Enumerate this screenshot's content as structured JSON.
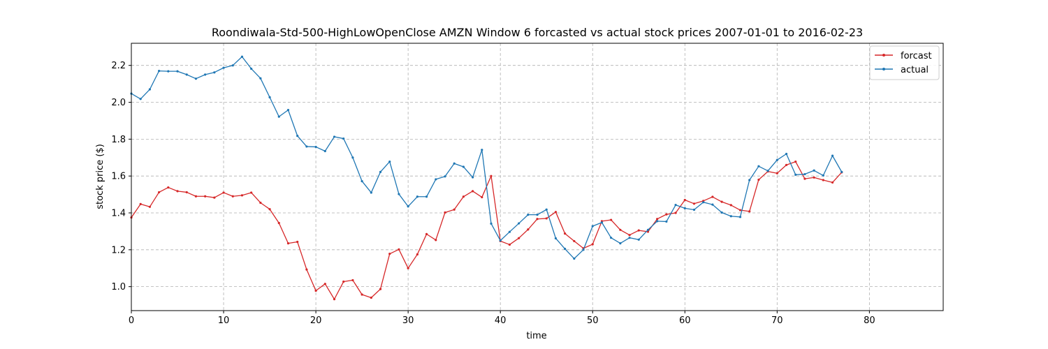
{
  "chart_data": {
    "type": "line",
    "title": "Roondiwala-Std-500-HighLowOpenClose AMZN Window 6 forcasted vs actual stock prices 2007-01-01 to 2016-02-23",
    "xlabel": "time",
    "ylabel": "stock price ($)",
    "xlim": [
      0,
      88
    ],
    "ylim": [
      0.87,
      2.32
    ],
    "xticks": [
      0,
      10,
      20,
      30,
      40,
      50,
      60,
      70,
      80
    ],
    "yticks": [
      1.0,
      1.2,
      1.4,
      1.6,
      1.8,
      2.0,
      2.2
    ],
    "ytick_labels": [
      "1.0",
      "1.2",
      "1.4",
      "1.6",
      "1.8",
      "2.0",
      "2.2"
    ],
    "grid": true,
    "legend_position": "top-right",
    "series": [
      {
        "name": "forcast",
        "color": "#d62728",
        "values": [
          1.375,
          1.448,
          1.433,
          1.512,
          1.538,
          1.518,
          1.512,
          1.49,
          1.49,
          1.483,
          1.51,
          1.49,
          1.495,
          1.51,
          1.455,
          1.42,
          1.345,
          1.235,
          1.243,
          1.093,
          0.978,
          1.015,
          0.932,
          1.027,
          1.035,
          0.957,
          0.94,
          0.987,
          1.178,
          1.202,
          1.1,
          1.175,
          1.285,
          1.253,
          1.402,
          1.418,
          1.488,
          1.518,
          1.485,
          1.6,
          1.247,
          1.228,
          1.263,
          1.31,
          1.367,
          1.37,
          1.405,
          1.288,
          1.247,
          1.208,
          1.23,
          1.355,
          1.362,
          1.308,
          1.28,
          1.305,
          1.298,
          1.367,
          1.392,
          1.4,
          1.47,
          1.45,
          1.465,
          1.487,
          1.46,
          1.442,
          1.415,
          1.408,
          1.58,
          1.625,
          1.615,
          1.66,
          1.678,
          1.585,
          1.592,
          1.578,
          1.565,
          1.62
        ]
      },
      {
        "name": "actual",
        "color": "#1f77b4",
        "values": [
          2.047,
          2.018,
          2.07,
          2.17,
          2.168,
          2.168,
          2.15,
          2.128,
          2.15,
          2.162,
          2.187,
          2.2,
          2.247,
          2.182,
          2.13,
          2.027,
          1.922,
          1.958,
          1.818,
          1.76,
          1.758,
          1.735,
          1.813,
          1.803,
          1.7,
          1.572,
          1.51,
          1.622,
          1.678,
          1.502,
          1.435,
          1.488,
          1.488,
          1.582,
          1.598,
          1.668,
          1.65,
          1.593,
          1.742,
          1.342,
          1.25,
          1.297,
          1.343,
          1.39,
          1.39,
          1.418,
          1.262,
          1.205,
          1.152,
          1.2,
          1.328,
          1.348,
          1.265,
          1.235,
          1.265,
          1.255,
          1.308,
          1.355,
          1.353,
          1.443,
          1.425,
          1.417,
          1.458,
          1.445,
          1.402,
          1.382,
          1.378,
          1.578,
          1.653,
          1.628,
          1.687,
          1.72,
          1.607,
          1.61,
          1.63,
          1.603,
          1.71,
          1.622
        ]
      }
    ]
  }
}
